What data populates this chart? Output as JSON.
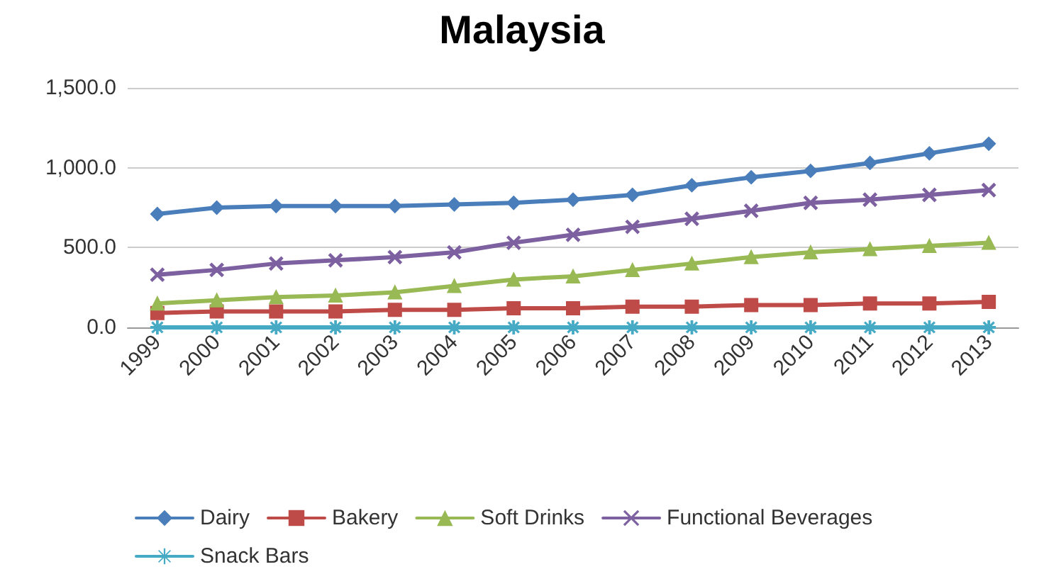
{
  "chart_data": {
    "type": "line",
    "title": "Malaysia",
    "categories": [
      "1999",
      "2000",
      "2001",
      "2002",
      "2003",
      "2004",
      "2005",
      "2006",
      "2007",
      "2008",
      "2009",
      "2010",
      "2011",
      "2012",
      "2013"
    ],
    "series": [
      {
        "name": "Dairy",
        "color": "#4a7ebb",
        "marker": "diamond",
        "values": [
          710,
          750,
          760,
          760,
          760,
          770,
          780,
          800,
          830,
          890,
          940,
          980,
          1030,
          1090,
          1150
        ]
      },
      {
        "name": "Bakery",
        "color": "#be4b48",
        "marker": "square",
        "values": [
          90,
          100,
          100,
          100,
          110,
          110,
          120,
          120,
          130,
          130,
          140,
          140,
          150,
          150,
          160
        ]
      },
      {
        "name": "Soft Drinks",
        "color": "#98b954",
        "marker": "triangle",
        "values": [
          150,
          170,
          190,
          200,
          220,
          260,
          300,
          320,
          360,
          400,
          440,
          470,
          490,
          510,
          530
        ]
      },
      {
        "name": "Functional Beverages",
        "color": "#7d60a0",
        "marker": "cross",
        "values": [
          330,
          360,
          400,
          420,
          440,
          470,
          530,
          580,
          630,
          680,
          730,
          780,
          800,
          830,
          860
        ]
      },
      {
        "name": "Snack Bars",
        "color": "#46aac5",
        "marker": "star",
        "values": [
          0,
          0,
          0,
          0,
          0,
          0,
          0,
          0,
          0,
          0,
          0,
          0,
          0,
          0,
          0
        ]
      }
    ],
    "ylim": [
      0,
      1500
    ],
    "yticks": [
      {
        "value": 0,
        "label": "0.0"
      },
      {
        "value": 500,
        "label": "500.0"
      },
      {
        "value": 1000,
        "label": "1,000.0"
      },
      {
        "value": 1500,
        "label": "1,500.0"
      }
    ],
    "grid": "y",
    "legend": "bottom",
    "line_style": "solid"
  }
}
